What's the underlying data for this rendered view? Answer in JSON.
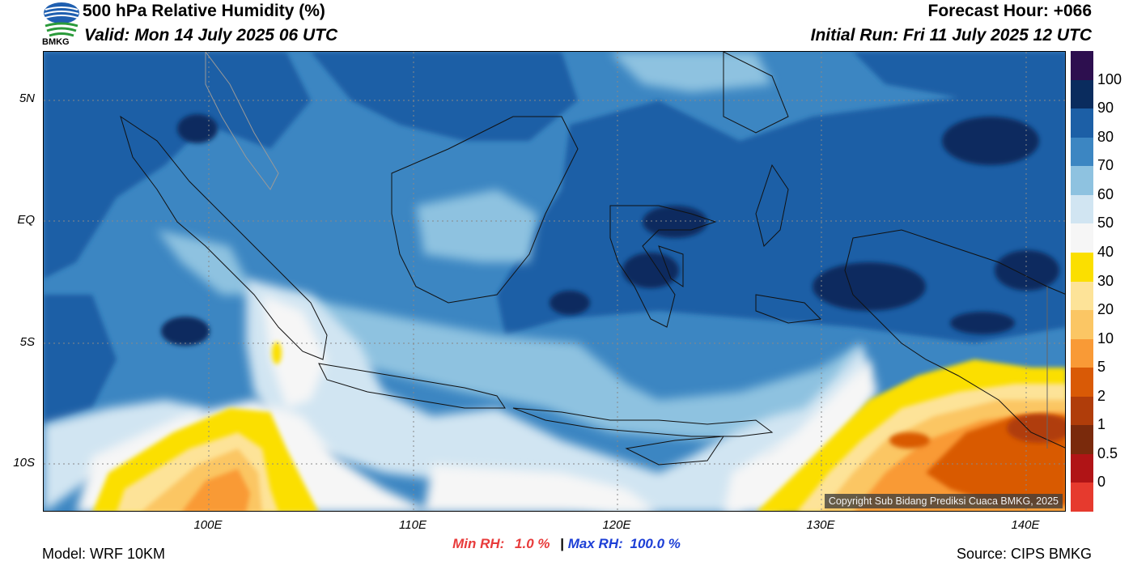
{
  "header": {
    "title": "500 hPa Relative Humidity (%)",
    "valid": "Valid: Mon 14 July 2025 06 UTC",
    "forecast_hour": "Forecast Hour: +066",
    "initial_run": "Initial Run: Fri 11 July 2025 12 UTC",
    "logo_text": "BMKG"
  },
  "axes": {
    "lat_labels": [
      "5N",
      "EQ",
      "5S",
      "10S"
    ],
    "lon_labels": [
      "100E",
      "110E",
      "120E",
      "130E",
      "140E"
    ]
  },
  "colorbar": {
    "labels": [
      "100",
      "90",
      "80",
      "70",
      "60",
      "50",
      "40",
      "30",
      "20",
      "10",
      "5",
      "2",
      "1",
      "0.5",
      "0"
    ],
    "colors": [
      "#2d0f4f",
      "#0a2c5e",
      "#1c5fa6",
      "#3c86c2",
      "#8ec2e0",
      "#d1e5f2",
      "#f6f6f6",
      "#fbdf00",
      "#fde398",
      "#fbc664",
      "#f99a36",
      "#d95a06",
      "#b03d0a",
      "#7a2a0c",
      "#b01416",
      "#e63a2e"
    ]
  },
  "footer": {
    "model": "Model: WRF 10KM",
    "min_rh_label": "Min RH:",
    "min_rh_value": "1.0 %",
    "separator": "|",
    "max_rh_label": "Max RH:",
    "max_rh_value": "100.0 %",
    "source": "Source: CIPS BMKG",
    "copyright": "Copyright Sub Bidang Prediksi Cuaca BMKG, 2025"
  }
}
